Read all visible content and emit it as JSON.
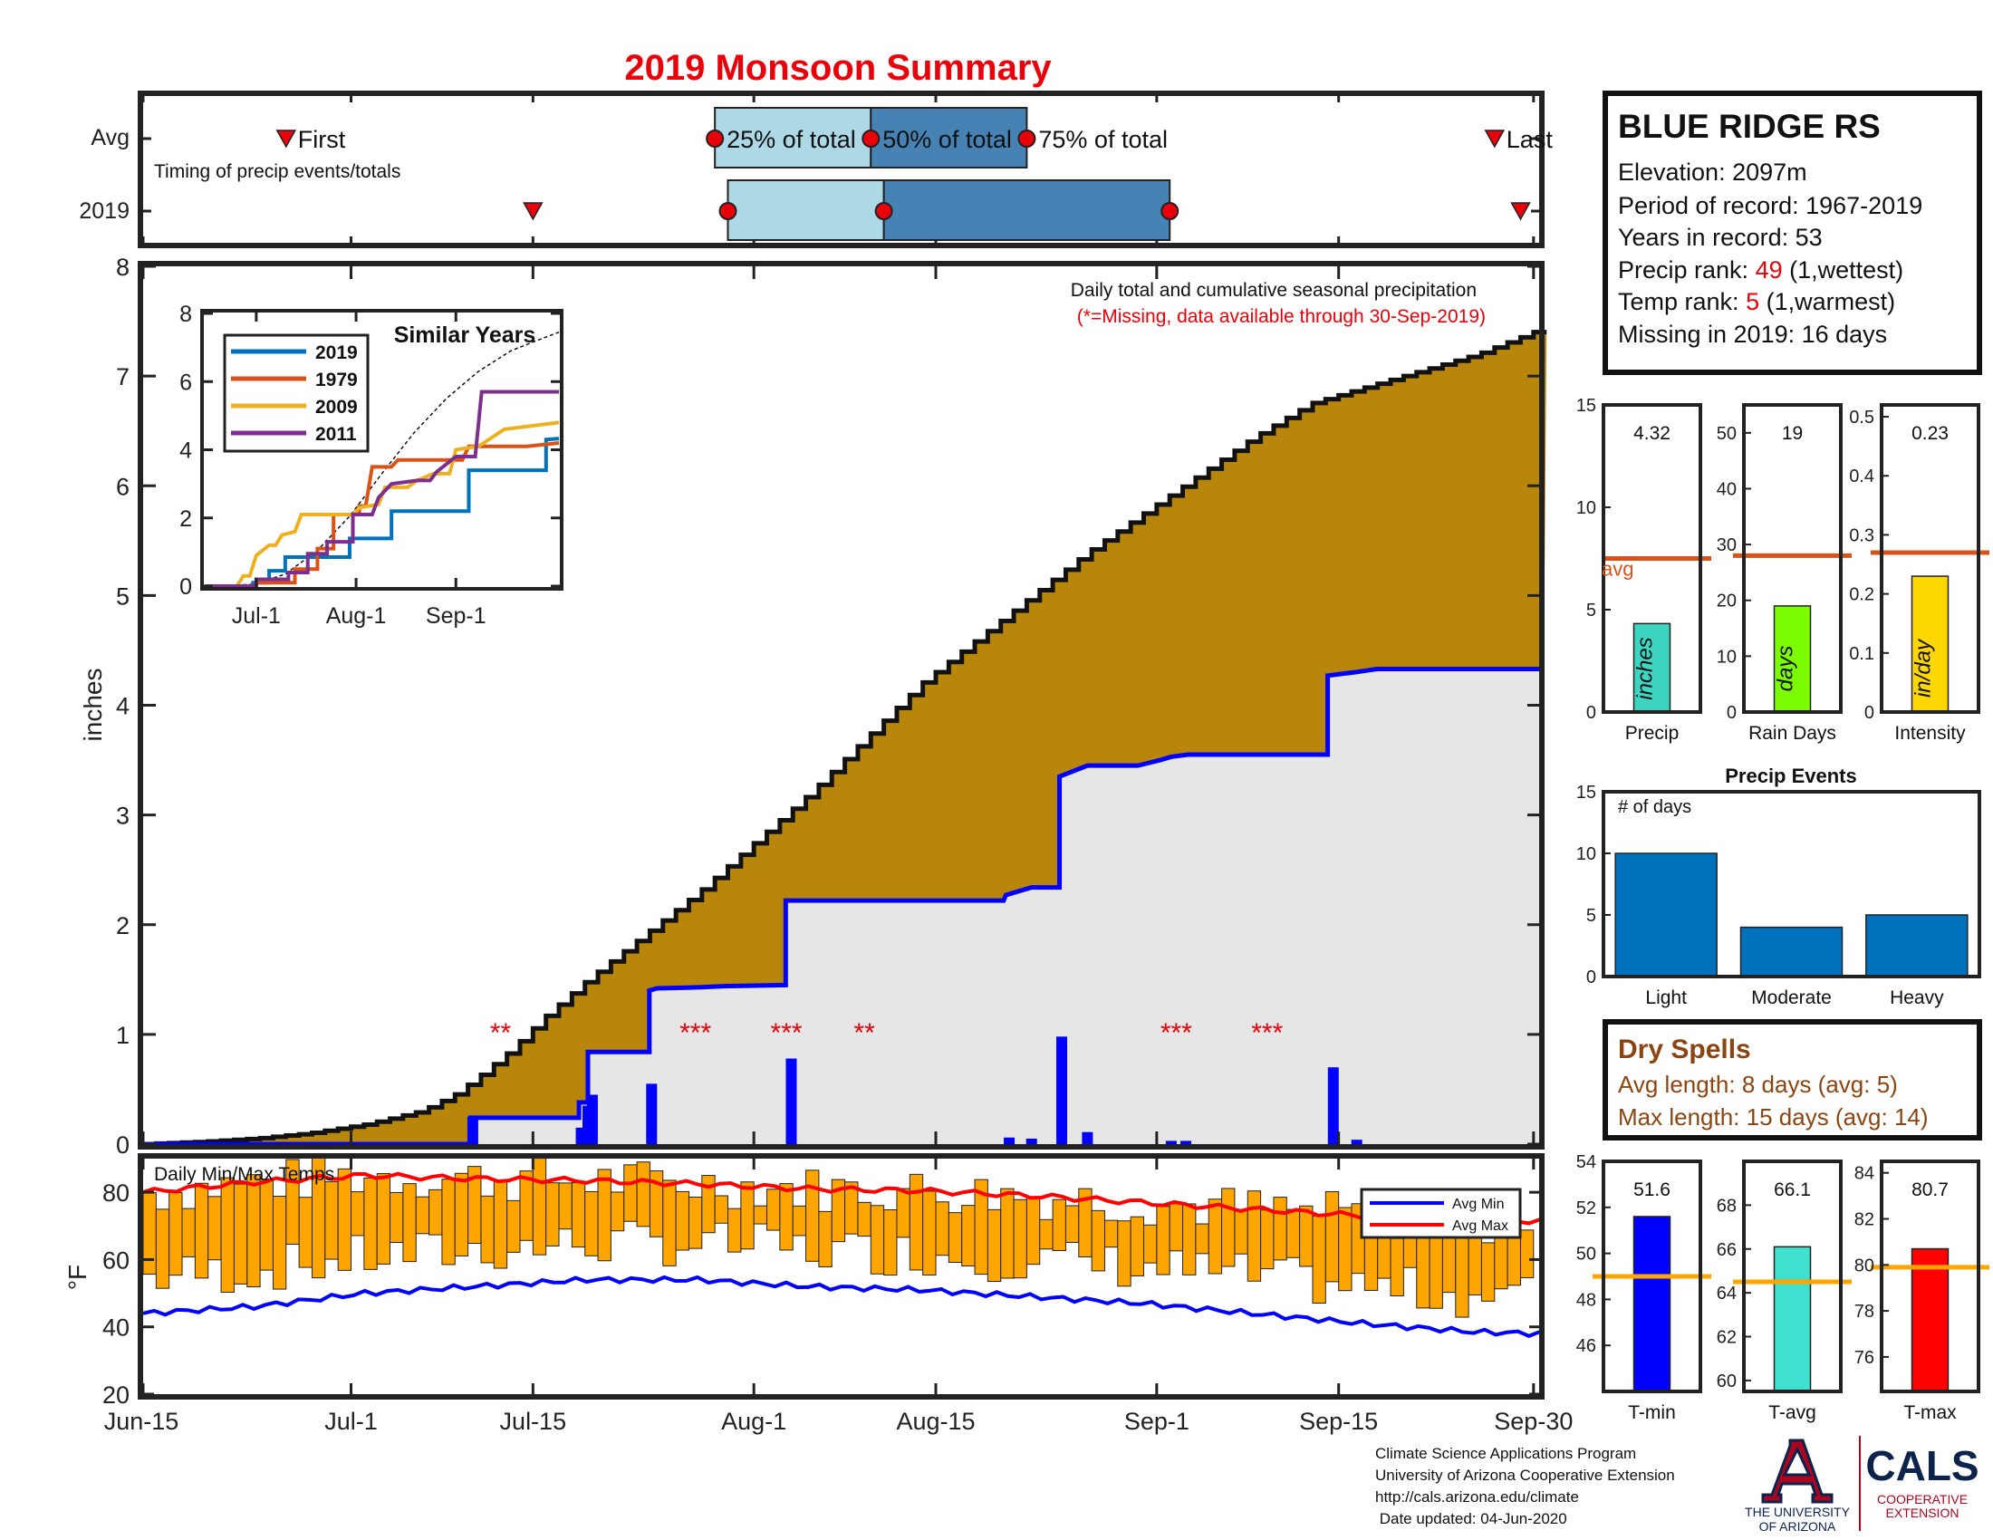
{
  "title": "2019 Monsoon Summary",
  "timing_panel": {
    "row_labels": [
      "Avg",
      "2019"
    ],
    "caption": "Timing of precip events/totals",
    "avg": {
      "first": "Jun-26",
      "p25": "Jul-29",
      "p50": "Aug-10",
      "p75": "Aug-22",
      "last": "Sep-27",
      "labels": {
        "first": "First",
        "p25": "25% of total",
        "p50": "50% of total",
        "p75": "75% of total",
        "last": "Last"
      }
    },
    "y2019": {
      "first": "Jul-15",
      "p25": "Jul-30",
      "p50": "Aug-11",
      "p75": "Sep-02",
      "last": "Sep-29"
    }
  },
  "station": {
    "name": "BLUE RIDGE RS",
    "elevation_label": "Elevation: 2097m",
    "period_label": "Period of record: 1967-2019",
    "years_label": "Years in record: 53",
    "precip_rank_prefix": "Precip rank: ",
    "precip_rank": "49",
    "precip_rank_suffix": " (1,wettest)",
    "temp_rank_prefix": "Temp rank: ",
    "temp_rank": "5",
    "temp_rank_suffix": " (1,warmest)",
    "missing_label": "Missing in 2019: 16 days"
  },
  "chart_data": [
    {
      "id": "main_precip",
      "type": "area",
      "annotation_title": "Daily total and cumulative seasonal precipitation",
      "annotation_missing": "(*=Missing, data available through 30-Sep-2019)",
      "ylabel": "inches",
      "ylim": [
        0,
        8
      ],
      "yticks": [
        "0",
        "1",
        "2",
        "3",
        "4",
        "5",
        "6",
        "7",
        "8"
      ],
      "xticks": [
        "Jun-15",
        "Jul-1",
        "Jul-15",
        "Aug-1",
        "Aug-15",
        "Sep-1",
        "Sep-15",
        "Sep-30"
      ],
      "avg_cumulative_points": [
        [
          0,
          0
        ],
        [
          5,
          0.02
        ],
        [
          10,
          0.05
        ],
        [
          15,
          0.1
        ],
        [
          20,
          0.18
        ],
        [
          25,
          0.3
        ],
        [
          28,
          0.45
        ],
        [
          30,
          0.6
        ],
        [
          33,
          0.85
        ],
        [
          36,
          1.15
        ],
        [
          40,
          1.5
        ],
        [
          45,
          1.9
        ],
        [
          50,
          2.3
        ],
        [
          55,
          2.75
        ],
        [
          60,
          3.2
        ],
        [
          65,
          3.7
        ],
        [
          70,
          4.2
        ],
        [
          75,
          4.6
        ],
        [
          80,
          5.0
        ],
        [
          85,
          5.4
        ],
        [
          90,
          5.75
        ],
        [
          95,
          6.1
        ],
        [
          100,
          6.45
        ],
        [
          105,
          6.75
        ],
        [
          110,
          6.9
        ],
        [
          115,
          7.05
        ],
        [
          120,
          7.2
        ],
        [
          125,
          7.4
        ],
        [
          107,
          7.45
        ],
        [
          0,
          0
        ]
      ],
      "daily_precip": [
        [
          29.5,
          0.25
        ],
        [
          39.2,
          0.15
        ],
        [
          39.8,
          0.35
        ],
        [
          40.2,
          0.45
        ],
        [
          45.5,
          0.55
        ],
        [
          58,
          0.78
        ],
        [
          77.5,
          0.06
        ],
        [
          79.5,
          0.05
        ],
        [
          82.2,
          0.98
        ],
        [
          84.5,
          0.11
        ],
        [
          92,
          0.03
        ],
        [
          93.3,
          0.03
        ],
        [
          106.5,
          0.7
        ],
        [
          108.6,
          0.04
        ]
      ],
      "cum_2019_steps": [
        [
          0,
          0
        ],
        [
          29.3,
          0
        ],
        [
          29.3,
          0.24
        ],
        [
          39,
          0.24
        ],
        [
          39,
          0.38
        ],
        [
          39.8,
          0.38
        ],
        [
          39.8,
          0.84
        ],
        [
          45.3,
          0.84
        ],
        [
          45.3,
          1.4
        ],
        [
          46,
          1.42
        ],
        [
          50,
          1.43
        ],
        [
          52,
          1.44
        ],
        [
          57.5,
          1.45
        ],
        [
          57.5,
          2.22
        ],
        [
          77,
          2.22
        ],
        [
          77.2,
          2.27
        ],
        [
          79.5,
          2.34
        ],
        [
          82,
          2.34
        ],
        [
          82,
          3.35
        ],
        [
          84.5,
          3.45
        ],
        [
          89,
          3.45
        ],
        [
          91,
          3.5
        ],
        [
          92,
          3.53
        ],
        [
          93.5,
          3.55
        ],
        [
          106,
          3.55
        ],
        [
          106,
          4.27
        ],
        [
          108.4,
          4.3
        ],
        [
          110.4,
          4.33
        ],
        [
          125,
          4.33
        ]
      ],
      "missing_markers": [
        {
          "day": 27.5,
          "text": "**"
        },
        {
          "day": 42.5,
          "text": "***"
        },
        {
          "day": 49.5,
          "text": "***"
        },
        {
          "day": 55.5,
          "text": "**"
        },
        {
          "day": 79.5,
          "text": "***"
        },
        {
          "day": 86.5,
          "text": "***"
        }
      ]
    },
    {
      "id": "similar_years",
      "type": "line",
      "title": "Similar Years",
      "ylim": [
        0,
        8
      ],
      "yticks": [
        "0",
        "2",
        "4",
        "6",
        "8"
      ],
      "xticks": [
        "Jul-1",
        "Aug-1",
        "Sep-1"
      ],
      "series": [
        {
          "name": "2019",
          "color": "#0072BD",
          "points": [
            [
              0,
              0
            ],
            [
              15,
              0
            ],
            [
              15,
              0.1
            ],
            [
              20,
              0.1
            ],
            [
              20,
              0.45
            ],
            [
              25,
              0.45
            ],
            [
              25,
              0.85
            ],
            [
              45,
              0.85
            ],
            [
              45,
              1.4
            ],
            [
              58,
              1.4
            ],
            [
              58,
              2.2
            ],
            [
              82,
              2.2
            ],
            [
              82,
              3.4
            ],
            [
              106,
              3.4
            ],
            [
              106,
              4.3
            ],
            [
              110,
              4.33
            ]
          ]
        },
        {
          "name": "1979",
          "color": "#D95319",
          "points": [
            [
              0,
              0
            ],
            [
              16,
              0
            ],
            [
              16,
              0.1
            ],
            [
              28,
              0.1
            ],
            [
              28,
              0.5
            ],
            [
              35,
              0.5
            ],
            [
              35,
              1.1
            ],
            [
              40,
              1.1
            ],
            [
              40,
              2.1
            ],
            [
              48,
              2.1
            ],
            [
              48,
              2.35
            ],
            [
              50,
              2.35
            ],
            [
              52,
              3.5
            ],
            [
              58,
              3.5
            ],
            [
              60,
              3.7
            ],
            [
              80,
              3.7
            ],
            [
              82,
              4.1
            ],
            [
              100,
              4.1
            ],
            [
              110,
              4.2
            ]
          ]
        },
        {
          "name": "2009",
          "color": "#EDB120",
          "points": [
            [
              0,
              0
            ],
            [
              10,
              0
            ],
            [
              12,
              0.3
            ],
            [
              14,
              0.3
            ],
            [
              16,
              0.9
            ],
            [
              20,
              1.2
            ],
            [
              22,
              1.2
            ],
            [
              24,
              1.5
            ],
            [
              28,
              1.6
            ],
            [
              30,
              2.1
            ],
            [
              46,
              2.1
            ],
            [
              48,
              2.3
            ],
            [
              54,
              2.4
            ],
            [
              56,
              2.9
            ],
            [
              63,
              2.9
            ],
            [
              66,
              3.1
            ],
            [
              71,
              3.3
            ],
            [
              76,
              3.3
            ],
            [
              78,
              4.0
            ],
            [
              85,
              4.1
            ],
            [
              93,
              4.6
            ],
            [
              110,
              4.8
            ]
          ]
        },
        {
          "name": "2011",
          "color": "#7E2F8E",
          "points": [
            [
              0,
              0
            ],
            [
              16,
              0
            ],
            [
              16,
              0.2
            ],
            [
              26,
              0.2
            ],
            [
              26,
              0.4
            ],
            [
              32,
              0.4
            ],
            [
              32,
              0.95
            ],
            [
              38,
              0.95
            ],
            [
              38,
              1.3
            ],
            [
              46,
              1.3
            ],
            [
              46,
              2.1
            ],
            [
              52,
              2.1
            ],
            [
              54,
              2.6
            ],
            [
              58,
              3.0
            ],
            [
              66,
              3.1
            ],
            [
              70,
              3.1
            ],
            [
              72,
              3.35
            ],
            [
              78,
              3.8
            ],
            [
              84,
              3.8
            ],
            [
              86,
              5.7
            ],
            [
              96,
              5.7
            ],
            [
              110,
              5.7
            ]
          ]
        }
      ],
      "avg_points": [
        [
          0,
          0
        ],
        [
          15,
          0.05
        ],
        [
          25,
          0.35
        ],
        [
          35,
          1.05
        ],
        [
          45,
          2.05
        ],
        [
          55,
          3.3
        ],
        [
          65,
          4.5
        ],
        [
          75,
          5.5
        ],
        [
          85,
          6.3
        ],
        [
          95,
          6.9
        ],
        [
          103,
          7.2
        ],
        [
          110,
          7.45
        ]
      ]
    },
    {
      "id": "precip_bars",
      "type": "bar",
      "panels": [
        {
          "name": "Precip",
          "label": "inches",
          "value": 4.32,
          "value_text": "4.32",
          "avg": 7.5,
          "avg_label": "avg",
          "ylim": [
            0,
            15
          ],
          "yticks": [
            "0",
            "5",
            "10",
            "15"
          ],
          "color": "#3DD5C2"
        },
        {
          "name": "Rain Days",
          "label": "days",
          "value": 19,
          "value_text": "19",
          "avg": 28,
          "ylim": [
            0,
            55
          ],
          "yticks": [
            "0",
            "10",
            "20",
            "30",
            "40",
            "50"
          ],
          "color": "#7CFC00"
        },
        {
          "name": "Intensity",
          "label": "in/day",
          "value": 0.23,
          "value_text": "0.23",
          "avg": 0.27,
          "ylim": [
            0,
            0.52
          ],
          "yticks": [
            "0",
            "0.1",
            "0.2",
            "0.3",
            "0.4",
            "0.5"
          ],
          "color": "#FFD700"
        }
      ]
    },
    {
      "id": "precip_events",
      "type": "bar",
      "title": "Precip Events",
      "ylabel_inside": "# of days",
      "categories": [
        "Light",
        "Moderate",
        "Heavy"
      ],
      "values": [
        10,
        4,
        5
      ],
      "ylim": [
        0,
        15
      ],
      "yticks": [
        "0",
        "5",
        "10",
        "15"
      ],
      "color": "#0072BD"
    },
    {
      "id": "temps",
      "type": "bar",
      "title": "Daily Min/Max Temps",
      "ylabel": "°F",
      "ylim": [
        20,
        90
      ],
      "yticks": [
        "20",
        "40",
        "60",
        "80"
      ],
      "legend": [
        "Avg Min",
        "Avg Max"
      ],
      "legend_placement": "top-right",
      "avg_max_points": [
        [
          0,
          80
        ],
        [
          10,
          83
        ],
        [
          20,
          85
        ],
        [
          30,
          84
        ],
        [
          40,
          83.5
        ],
        [
          50,
          82.5
        ],
        [
          60,
          81
        ],
        [
          70,
          80.5
        ],
        [
          80,
          79
        ],
        [
          90,
          77
        ],
        [
          100,
          75
        ],
        [
          110,
          73
        ],
        [
          120,
          71.5
        ],
        [
          126,
          71.5
        ]
      ],
      "avg_min_points": [
        [
          0,
          44
        ],
        [
          10,
          46
        ],
        [
          20,
          50
        ],
        [
          30,
          52
        ],
        [
          40,
          54
        ],
        [
          50,
          54
        ],
        [
          60,
          52
        ],
        [
          70,
          51
        ],
        [
          80,
          49
        ],
        [
          90,
          47
        ],
        [
          100,
          44
        ],
        [
          110,
          41
        ],
        [
          120,
          38.5
        ],
        [
          126,
          38
        ]
      ],
      "daily_max_base": 84,
      "daily_min_base": 48
    },
    {
      "id": "temp_bars",
      "type": "bar",
      "panels": [
        {
          "name": "T-min",
          "value": 51.6,
          "value_text": "51.6",
          "avg": 49,
          "ylim": [
            44,
            54
          ],
          "yticks": [
            "46",
            "48",
            "50",
            "52",
            "54"
          ],
          "color": "#0000FF"
        },
        {
          "name": "T-avg",
          "value": 66.1,
          "value_text": "66.1",
          "avg": 64.5,
          "ylim": [
            59.5,
            70
          ],
          "yticks": [
            "60",
            "62",
            "64",
            "66",
            "68"
          ],
          "color": "#40E0D0"
        },
        {
          "name": "T-max",
          "value": 80.7,
          "value_text": "80.7",
          "avg": 79.9,
          "ylim": [
            74.5,
            84.5
          ],
          "yticks": [
            "76",
            "78",
            "80",
            "82",
            "84"
          ],
          "color": "#FF0000"
        }
      ]
    }
  ],
  "dry_spells": {
    "title": "Dry Spells",
    "avg_length": "Avg length: 8 days (avg: 5)",
    "max_length": "Max length: 15 days (avg: 14)"
  },
  "footer": {
    "line1": "Climate Science Applications Program",
    "line2": "University of Arizona Cooperative Extension",
    "line3": "http://cals.arizona.edu/climate",
    "line4": " Date updated: 04-Jun-2020"
  },
  "logos": {
    "ua_line1": "THE UNIVERSITY",
    "ua_line2": "OF ARIZONA",
    "cals": "CALS",
    "cals_line1": "COOPERATIVE",
    "cals_line2": "EXTENSION"
  },
  "colors": {
    "title_red": "#E8000B",
    "area_brown": "#B8860B",
    "area_gray": "#E6E6E6",
    "blue": "#0000FF",
    "temp_bar": "#FFA500",
    "brown_text": "#8B4513"
  }
}
